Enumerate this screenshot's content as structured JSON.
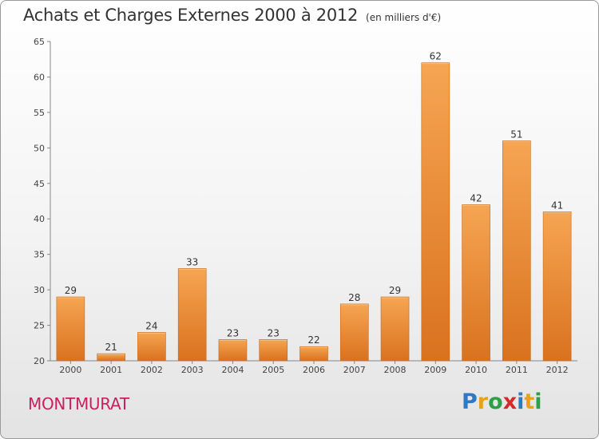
{
  "title": "Achats et Charges Externes 2000 à 2012",
  "unit_note": "(en milliers d'€)",
  "commune": "MONTMURAT",
  "logo": {
    "text": "Proxiti",
    "letter_colors": [
      "#2f78c4",
      "#e8a21a",
      "#2f9e44",
      "#d62a2a",
      "#2f78c4",
      "#e8a21a",
      "#2f9e44"
    ]
  },
  "chart_data": {
    "type": "bar",
    "categories": [
      "2000",
      "2001",
      "2002",
      "2003",
      "2004",
      "2005",
      "2006",
      "2007",
      "2008",
      "2009",
      "2010",
      "2011",
      "2012"
    ],
    "values": [
      29,
      21,
      24,
      33,
      23,
      23,
      22,
      28,
      29,
      62,
      42,
      51,
      41
    ],
    "ylim": [
      20,
      65
    ],
    "yticks": [
      20,
      25,
      30,
      35,
      40,
      45,
      50,
      55,
      60,
      65
    ],
    "grid": false,
    "bar_color": "#ee8e34",
    "xlabel": "",
    "ylabel": ""
  }
}
